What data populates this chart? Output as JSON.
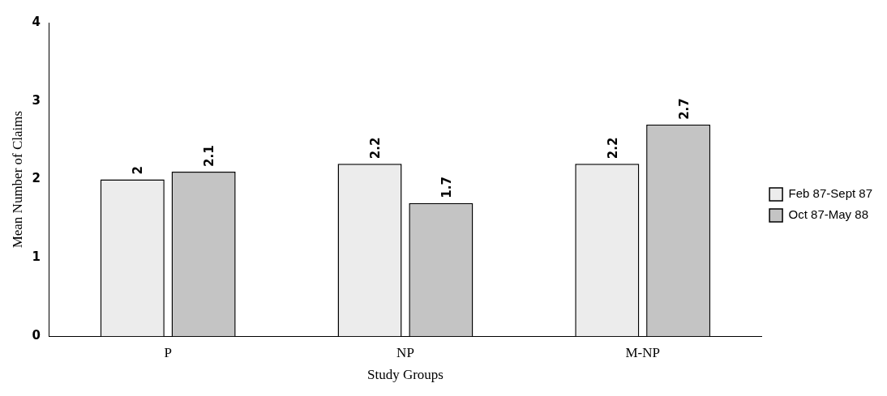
{
  "chart_data": {
    "type": "bar",
    "xlabel": "Study Groups",
    "ylabel": "Mean Number of Claims",
    "categories": [
      "P",
      "NP",
      "M-NP"
    ],
    "series": [
      {
        "name": "Feb 87-Sept 87",
        "color": "#ececec",
        "values": [
          2,
          2.2,
          2.2
        ]
      },
      {
        "name": "Oct 87-May 88",
        "color": "#c4c4c4",
        "values": [
          2.1,
          1.7,
          2.7
        ]
      }
    ],
    "ylim": [
      0,
      4
    ],
    "yticks": [
      0,
      1,
      2,
      3,
      4
    ],
    "data_labels": true,
    "legend": "right",
    "grid": false
  }
}
